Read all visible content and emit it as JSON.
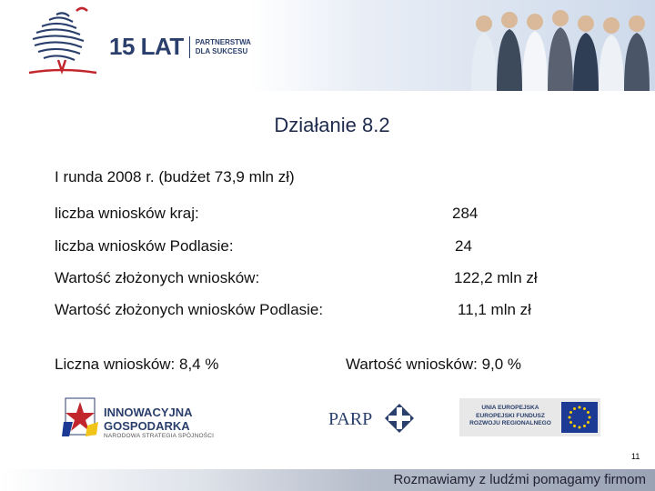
{
  "header": {
    "logo_main": "15 LAT",
    "logo_sub_line1": "PARTNERSTWA",
    "logo_sub_line2": "DLA SUKCESU"
  },
  "title": "Działanie 8.2",
  "round_info": "I runda 2008 r. (budżet 73,9 mln zł)",
  "stats": [
    {
      "label": "liczba wniosków kraj:",
      "value": "284"
    },
    {
      "label": "liczba wniosków Podlasie:",
      "value": "24"
    },
    {
      "label": "Wartość złożonych wniosków:",
      "value": "122,2 mln zł"
    },
    {
      "label": "Wartość złożonych wniosków Podlasie:",
      "value": "11,1 mln zł"
    }
  ],
  "summary": {
    "count_share": "Liczna wniosków: 8,4 %",
    "value_share": "Wartość wniosków: 9,0 %"
  },
  "logos": {
    "ig_title": "INNOWACYJNA GOSPODARKA",
    "ig_subtitle": "NARODOWA STRATEGIA SPÓJNOŚCI",
    "parp": "PARP",
    "ue_line1": "UNIA EUROPEJSKA",
    "ue_line2": "EUROPEJSKI FUNDUSZ",
    "ue_line3": "ROZWOJU REGIONALNEGO"
  },
  "page_number": "11",
  "footer": "Rozmawiamy z ludźmi pomagamy firmom",
  "colors": {
    "accent": "#1f2b4d",
    "brand_blue": "#2a3f6c",
    "eu_blue": "#1c3a94",
    "eu_star": "#ffcc00"
  }
}
